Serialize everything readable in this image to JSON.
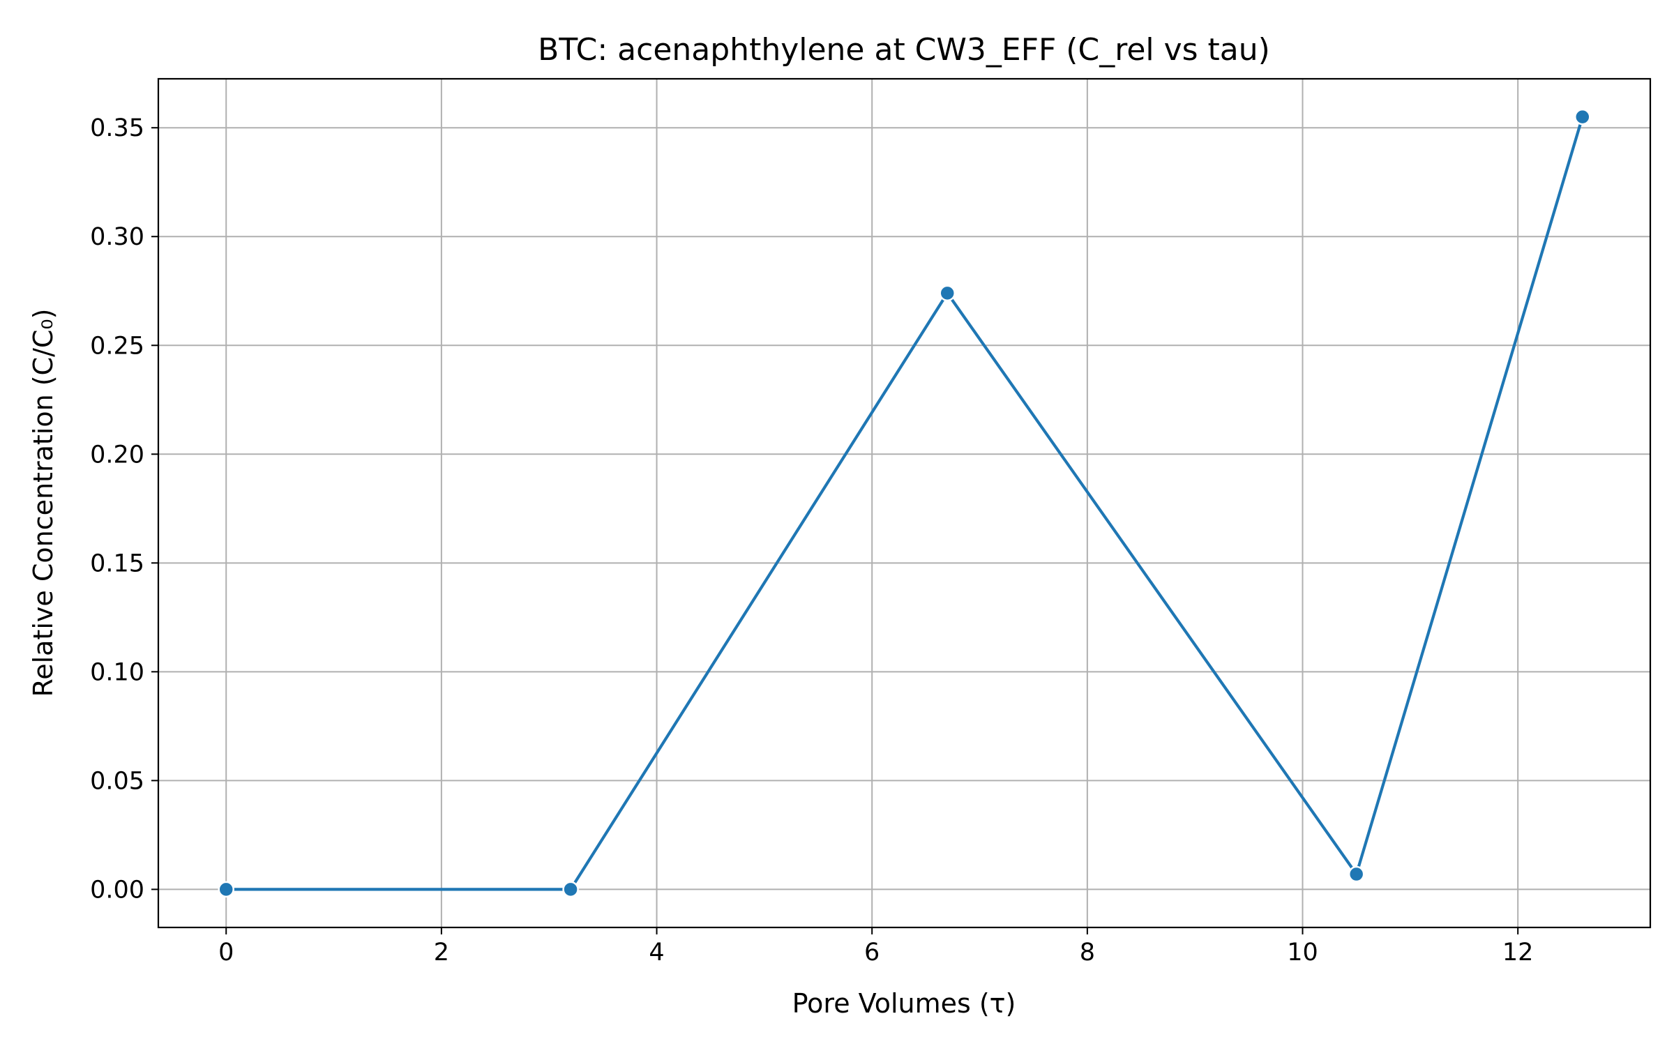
{
  "chart_data": {
    "type": "line",
    "title": "BTC: acenaphthylene at CW3_EFF (C_rel vs tau)",
    "xlabel": "Pore Volumes (τ)",
    "ylabel": "Relative Concentration (C/C₀)",
    "xlim": [
      -0.63,
      13.23
    ],
    "ylim": [
      -0.0175,
      0.3725
    ],
    "x_ticks": [
      0,
      2,
      4,
      6,
      8,
      10,
      12
    ],
    "x_tick_labels": [
      "0",
      "2",
      "4",
      "6",
      "8",
      "10",
      "12"
    ],
    "y_ticks": [
      0.0,
      0.05,
      0.1,
      0.15,
      0.2,
      0.25,
      0.3,
      0.35
    ],
    "y_tick_labels": [
      "0.00",
      "0.05",
      "0.10",
      "0.15",
      "0.20",
      "0.25",
      "0.30",
      "0.35"
    ],
    "grid": true,
    "series": [
      {
        "color": "#1f77b4",
        "marker": "circle",
        "x": [
          0.0,
          3.2,
          6.7,
          10.5,
          12.6
        ],
        "y": [
          0.0,
          0.0,
          0.274,
          0.007,
          0.355
        ]
      }
    ]
  }
}
